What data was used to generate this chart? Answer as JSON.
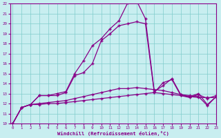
{
  "xlabel": "Windchill (Refroidissement éolien,°C)",
  "bg_color": "#c8eef0",
  "grid_color": "#80cccc",
  "line_color": "#880088",
  "xlim_min": 0,
  "xlim_max": 23,
  "ylim_min": 10,
  "ylim_max": 22,
  "xticks": [
    0,
    1,
    2,
    3,
    4,
    5,
    6,
    7,
    8,
    9,
    10,
    11,
    12,
    13,
    14,
    15,
    16,
    17,
    18,
    19,
    20,
    21,
    22,
    23
  ],
  "yticks": [
    10,
    11,
    12,
    13,
    14,
    15,
    16,
    17,
    18,
    19,
    20,
    21,
    22
  ],
  "curve_high_x": [
    0,
    1,
    2,
    3,
    4,
    5,
    6,
    7,
    8,
    9,
    10,
    11,
    12,
    13,
    14,
    15,
    16,
    17,
    18,
    19,
    20,
    21,
    22,
    23
  ],
  "curve_high_y": [
    10.0,
    11.6,
    11.9,
    12.8,
    12.8,
    13.0,
    13.2,
    15.0,
    16.3,
    17.8,
    18.5,
    19.5,
    20.3,
    22.1,
    22.3,
    20.5,
    13.2,
    13.8,
    14.5,
    12.9,
    12.7,
    13.0,
    11.9,
    12.7
  ],
  "curve_mid_x": [
    0,
    1,
    2,
    3,
    4,
    5,
    6,
    7,
    8,
    9,
    10,
    11,
    12,
    13,
    14,
    15,
    16,
    17,
    18,
    19,
    20,
    21,
    22,
    23
  ],
  "curve_mid_y": [
    10.0,
    11.6,
    11.9,
    12.8,
    12.8,
    12.8,
    13.1,
    14.8,
    15.1,
    16.0,
    18.3,
    19.0,
    19.8,
    20.0,
    20.2,
    20.0,
    13.1,
    14.1,
    14.4,
    12.8,
    12.6,
    12.9,
    12.5,
    12.8
  ],
  "curve_low2_x": [
    0,
    1,
    2,
    3,
    4,
    5,
    6,
    7,
    8,
    9,
    10,
    11,
    12,
    13,
    14,
    15,
    16,
    17,
    18,
    19,
    20,
    21,
    22,
    23
  ],
  "curve_low2_y": [
    10.0,
    11.6,
    11.9,
    12.0,
    12.1,
    12.2,
    12.3,
    12.5,
    12.7,
    12.9,
    13.1,
    13.3,
    13.5,
    13.5,
    13.6,
    13.5,
    13.4,
    13.3,
    13.1,
    12.9,
    12.8,
    12.7,
    11.8,
    12.7
  ],
  "curve_low1_x": [
    0,
    1,
    2,
    3,
    4,
    5,
    6,
    7,
    8,
    9,
    10,
    11,
    12,
    13,
    14,
    15,
    16,
    17,
    18,
    19,
    20,
    21,
    22,
    23
  ],
  "curve_low1_y": [
    10.0,
    11.6,
    11.9,
    11.9,
    12.0,
    12.0,
    12.1,
    12.2,
    12.3,
    12.4,
    12.5,
    12.6,
    12.7,
    12.8,
    12.9,
    13.0,
    13.1,
    13.0,
    12.9,
    12.8,
    12.7,
    12.6,
    12.6,
    12.6
  ]
}
